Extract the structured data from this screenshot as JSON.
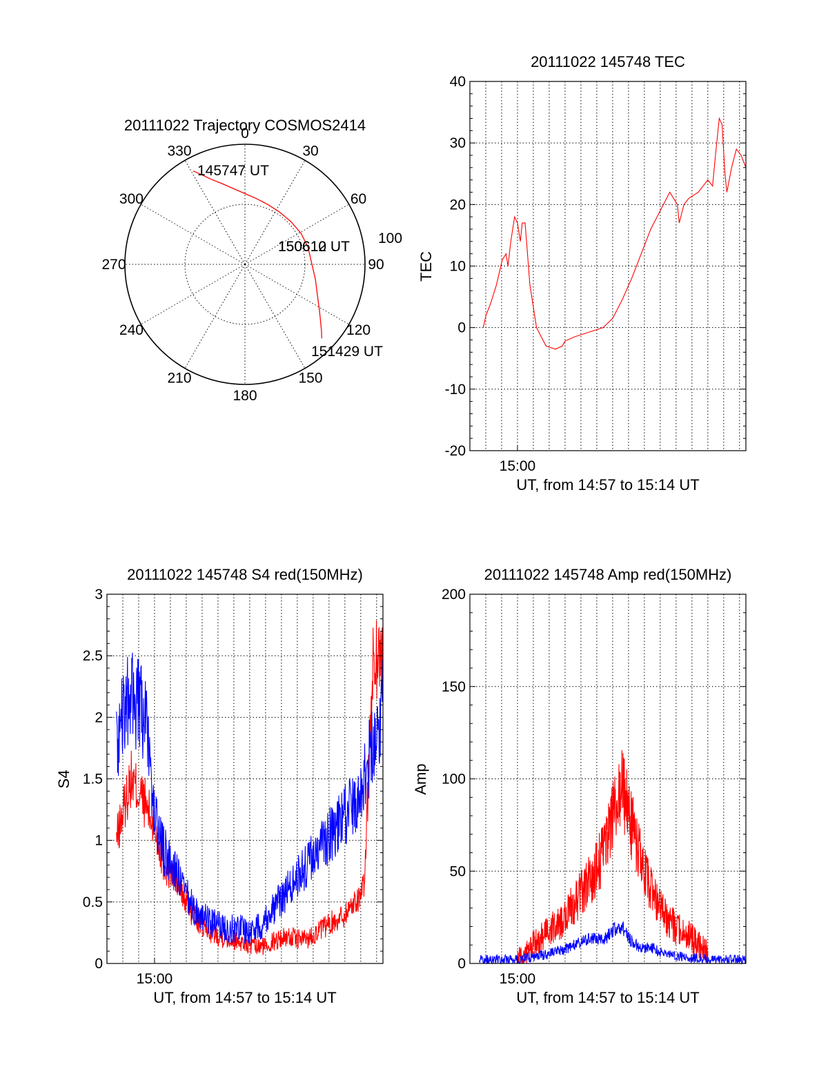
{
  "chart_data": [
    {
      "type": "polar",
      "title": "20111022 Trajectory COSMOS2414",
      "angle_labels": [
        "0",
        "30",
        "60",
        "90",
        "120",
        "150",
        "180",
        "210",
        "240",
        "270",
        "300",
        "330"
      ],
      "ring_label": "100",
      "series": [
        {
          "color": "#ff0000",
          "points": [
            {
              "az": 331,
              "el": 10
            },
            {
              "az": 334,
              "el": 15
            },
            {
              "az": 338,
              "el": 21
            },
            {
              "az": 344,
              "el": 27
            },
            {
              "az": 352,
              "el": 33
            },
            {
              "az": 0,
              "el": 37
            },
            {
              "az": 10,
              "el": 40
            },
            {
              "az": 21,
              "el": 42
            },
            {
              "az": 33,
              "el": 43
            },
            {
              "az": 47,
              "el": 43
            },
            {
              "az": 61,
              "el": 42
            },
            {
              "az": 75,
              "el": 41
            },
            {
              "az": 89,
              "el": 40
            },
            {
              "az": 102,
              "el": 36
            },
            {
              "az": 113,
              "el": 31
            },
            {
              "az": 121,
              "el": 25
            },
            {
              "az": 127,
              "el": 19
            },
            {
              "az": 131,
              "el": 14
            },
            {
              "az": 134,
              "el": 10
            }
          ]
        }
      ],
      "annotations": [
        "145747 UT",
        "150612 UT",
        "150610 UT",
        "151429 UT"
      ]
    },
    {
      "type": "line",
      "title": "20111022 145748 TEC",
      "xlabel": "UT, from 14:57 to 15:14 UT",
      "ylabel": "TEC",
      "xlim": [
        14.95,
        15.24
      ],
      "ylim": [
        -20,
        40
      ],
      "yticks": [
        "-20",
        "-10",
        "0",
        "10",
        "20",
        "30",
        "40"
      ],
      "xtick_label": "15:00",
      "xtick_value": 15.0,
      "series": [
        {
          "color": "#ff0000",
          "x": [
            14.964,
            14.967,
            14.972,
            14.978,
            14.984,
            14.988,
            14.99,
            14.993,
            14.997,
            15.0,
            15.003,
            15.005,
            15.008,
            15.01,
            15.013,
            15.02,
            15.03,
            15.04,
            15.047,
            15.05,
            15.06,
            15.07,
            15.08,
            15.09,
            15.1,
            15.11,
            15.12,
            15.13,
            15.14,
            15.15,
            15.16,
            15.168,
            15.17,
            15.175,
            15.18,
            15.19,
            15.2,
            15.205,
            15.208,
            15.212,
            15.215,
            15.218,
            15.22,
            15.225,
            15.23,
            15.235,
            15.24
          ],
          "values": [
            0,
            2,
            4,
            7,
            11,
            12,
            10,
            14,
            18,
            17,
            14,
            17,
            17,
            13,
            7,
            0,
            -3,
            -3.5,
            -3,
            -2.2,
            -1.5,
            -1,
            -0.5,
            0,
            1.5,
            4.5,
            8,
            12,
            16,
            19,
            22,
            20,
            17,
            20,
            21,
            22,
            24,
            23,
            28,
            34,
            33,
            25,
            22,
            26,
            29,
            28,
            26
          ]
        }
      ]
    },
    {
      "type": "line",
      "title": "20111022 145748 S4 red(150MHz)",
      "xlabel": "UT, from 14:57 to 15:14 UT",
      "ylabel": "S4",
      "xlim": [
        14.95,
        15.24
      ],
      "ylim": [
        0,
        3
      ],
      "yticks": [
        "0",
        "0.5",
        "1",
        "1.5",
        "2",
        "2.5",
        "3"
      ],
      "xtick_label": "15:00",
      "xtick_value": 15.0,
      "series": [
        {
          "color": "#ff0000",
          "x": [
            14.96,
            14.975,
            14.99,
            15.0,
            15.01,
            15.02,
            15.03,
            15.04,
            15.05,
            15.06,
            15.07,
            15.08,
            15.09,
            15.1,
            15.11,
            15.12,
            15.13,
            15.14,
            15.15,
            15.16,
            15.17,
            15.18,
            15.19,
            15.2,
            15.21,
            15.22,
            15.23,
            15.24
          ],
          "values": [
            1.0,
            1.5,
            1.3,
            1.1,
            0.8,
            0.7,
            0.55,
            0.4,
            0.3,
            0.25,
            0.22,
            0.2,
            0.18,
            0.14,
            0.13,
            0.16,
            0.2,
            0.22,
            0.2,
            0.2,
            0.25,
            0.3,
            0.35,
            0.4,
            0.5,
            0.6,
            2.5,
            2.5
          ],
          "noise": 0.12
        },
        {
          "color": "#0000ff",
          "x": [
            14.96,
            14.975,
            14.99,
            15.0,
            15.01,
            15.02,
            15.03,
            15.04,
            15.05,
            15.06,
            15.07,
            15.08,
            15.09,
            15.1,
            15.11,
            15.12,
            15.13,
            15.14,
            15.15,
            15.16,
            15.17,
            15.18,
            15.19,
            15.2,
            15.21,
            15.22,
            15.23,
            15.24
          ],
          "values": [
            1.8,
            2.2,
            2.0,
            1.2,
            0.9,
            0.8,
            0.6,
            0.45,
            0.38,
            0.33,
            0.3,
            0.28,
            0.3,
            0.25,
            0.3,
            0.4,
            0.5,
            0.6,
            0.7,
            0.8,
            0.9,
            1.0,
            1.1,
            1.2,
            1.3,
            1.5,
            1.8,
            2.1
          ],
          "noise": 0.15
        }
      ]
    },
    {
      "type": "line",
      "title": "20111022 145748 Amp red(150MHz)",
      "xlabel": "UT, from 14:57 to 15:14 UT",
      "ylabel": "Amp",
      "xlim": [
        14.95,
        15.24
      ],
      "ylim": [
        0,
        200
      ],
      "yticks": [
        "0",
        "50",
        "100",
        "150",
        "200"
      ],
      "xtick_label": "15:00",
      "xtick_value": 15.0,
      "series": [
        {
          "color": "#ff0000",
          "x": [
            15.0,
            15.01,
            15.02,
            15.03,
            15.04,
            15.05,
            15.06,
            15.07,
            15.08,
            15.09,
            15.1,
            15.11,
            15.12,
            15.13,
            15.14,
            15.15,
            15.16,
            15.17,
            15.18,
            15.19,
            15.2
          ],
          "values": [
            2,
            6,
            12,
            16,
            20,
            25,
            33,
            40,
            48,
            60,
            78,
            95,
            75,
            55,
            40,
            30,
            22,
            18,
            15,
            10,
            6
          ],
          "noise": 12
        },
        {
          "color": "#0000ff",
          "x": [
            14.96,
            14.98,
            15.0,
            15.01,
            15.02,
            15.03,
            15.04,
            15.05,
            15.06,
            15.07,
            15.08,
            15.09,
            15.1,
            15.11,
            15.12,
            15.13,
            15.14,
            15.15,
            15.16,
            15.17,
            15.18,
            15.19,
            15.2,
            15.22,
            15.24
          ],
          "values": [
            2,
            2,
            2,
            3,
            4,
            5,
            6,
            8,
            10,
            12,
            14,
            12,
            18,
            20,
            12,
            8,
            9,
            6,
            5,
            4,
            3,
            3,
            2,
            2,
            2
          ],
          "noise": 5
        }
      ]
    }
  ]
}
